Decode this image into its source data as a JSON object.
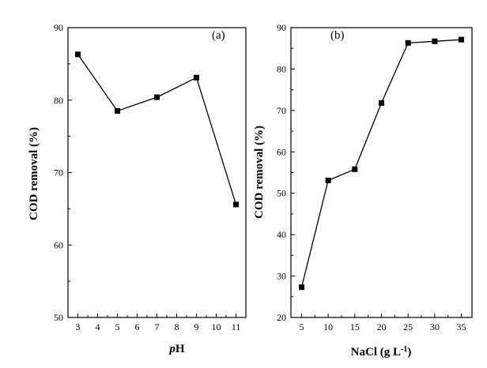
{
  "chart_data": [
    {
      "type": "line",
      "panel_label": "(a)",
      "xlabel_italic": "p",
      "xlabel_rest": "H",
      "ylabel": "COD removal (%)",
      "xlim": [
        2.5,
        11.5
      ],
      "ylim": [
        50,
        90
      ],
      "xticks": [
        3,
        4,
        5,
        6,
        7,
        8,
        9,
        10,
        11
      ],
      "yticks": [
        50,
        60,
        70,
        80,
        90
      ],
      "x": [
        3,
        5,
        7,
        9,
        11
      ],
      "y": [
        86.3,
        78.5,
        80.4,
        83.1,
        65.6
      ],
      "marker": "square",
      "color": "#000000"
    },
    {
      "type": "line",
      "panel_label": "(b)",
      "xlabel": "NaCl (g L",
      "xlabel_sup": "-1",
      "xlabel_end": ")",
      "ylabel": "COD removal (%)",
      "xlim": [
        3,
        37
      ],
      "ylim": [
        20,
        90
      ],
      "xticks": [
        5,
        10,
        15,
        20,
        25,
        30,
        35
      ],
      "yticks": [
        20,
        30,
        40,
        50,
        60,
        70,
        80,
        90
      ],
      "x": [
        5,
        10,
        15,
        20,
        25,
        30,
        35
      ],
      "y": [
        27.3,
        53.1,
        55.8,
        71.8,
        86.3,
        86.7,
        87.1
      ],
      "marker": "square",
      "color": "#000000"
    }
  ]
}
